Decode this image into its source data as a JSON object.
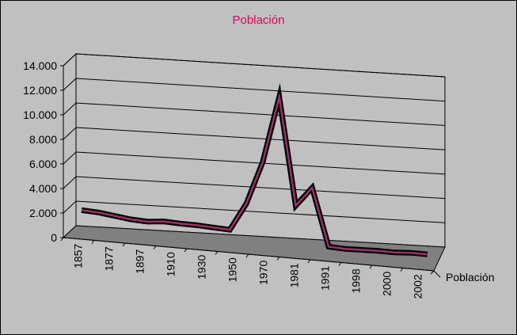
{
  "chart_data": {
    "type": "line",
    "title": "Población",
    "series": [
      {
        "name": "Población",
        "values": [
          1950,
          1850,
          1650,
          1450,
          1350,
          1450,
          1350,
          1300,
          1200,
          1100,
          3300,
          6800,
          12200,
          3400,
          4950,
          200,
          100,
          100,
          100,
          50,
          100,
          50
        ]
      }
    ],
    "x_tick_labels": [
      "1857",
      "1877",
      "1897",
      "1910",
      "1930",
      "1950",
      "1970",
      "1981",
      "1991",
      "1998",
      "2000",
      "2002"
    ],
    "y_tick_labels": [
      "0",
      "2.000",
      "4.000",
      "6.000",
      "8.000",
      "10.000",
      "12.000",
      "14.000"
    ],
    "ylim": [
      0,
      14000
    ],
    "depth_axis_label": "Población",
    "grid": true,
    "style": "3d-line",
    "colors": {
      "walls": "#c0c0c0",
      "floor": "#808080",
      "line_outer": "#000000",
      "line_inner": "#993366",
      "title": "#e0005a"
    }
  }
}
